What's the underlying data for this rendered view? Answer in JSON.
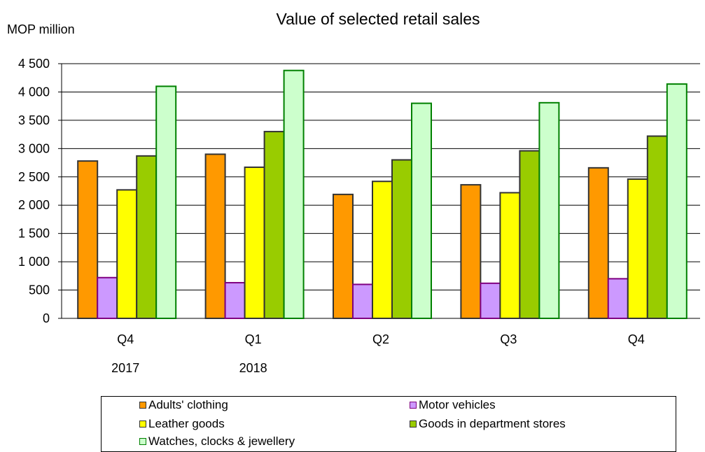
{
  "chart_data": {
    "type": "bar",
    "title": "Value of selected retail sales",
    "ylabel": "MOP million",
    "xlabel": "",
    "categories": [
      "Q4",
      "Q1",
      "Q2",
      "Q3",
      "Q4"
    ],
    "year_labels": [
      "2017",
      "2018",
      "",
      "",
      ""
    ],
    "ylim": [
      0,
      4500
    ],
    "yticks": [
      0,
      500,
      1000,
      1500,
      2000,
      2500,
      3000,
      3500,
      4000,
      4500
    ],
    "ytick_labels": [
      "0",
      "500",
      "1 000",
      "1 500",
      "2 000",
      "2 500",
      "3 000",
      "3 500",
      "4 000",
      "4 500"
    ],
    "grid": true,
    "legend_position": "bottom",
    "series": [
      {
        "name": "Adults' clothing",
        "color": "#FF9900",
        "stroke": "#333333",
        "values": [
          2780,
          2900,
          2190,
          2360,
          2660
        ]
      },
      {
        "name": "Motor vehicles",
        "color": "#CC99FF",
        "stroke": "#800080",
        "values": [
          720,
          630,
          600,
          620,
          700
        ]
      },
      {
        "name": "Leather goods",
        "color": "#FFFF00",
        "stroke": "#333333",
        "values": [
          2270,
          2670,
          2420,
          2220,
          2460
        ]
      },
      {
        "name": "Goods in department stores",
        "color": "#99CC00",
        "stroke": "#333333",
        "values": [
          2870,
          3300,
          2800,
          2960,
          3220
        ]
      },
      {
        "name": "Watches, clocks & jewellery",
        "color": "#CCFFCC",
        "stroke": "#008000",
        "values": [
          4100,
          4380,
          3800,
          3810,
          4140
        ]
      }
    ]
  }
}
